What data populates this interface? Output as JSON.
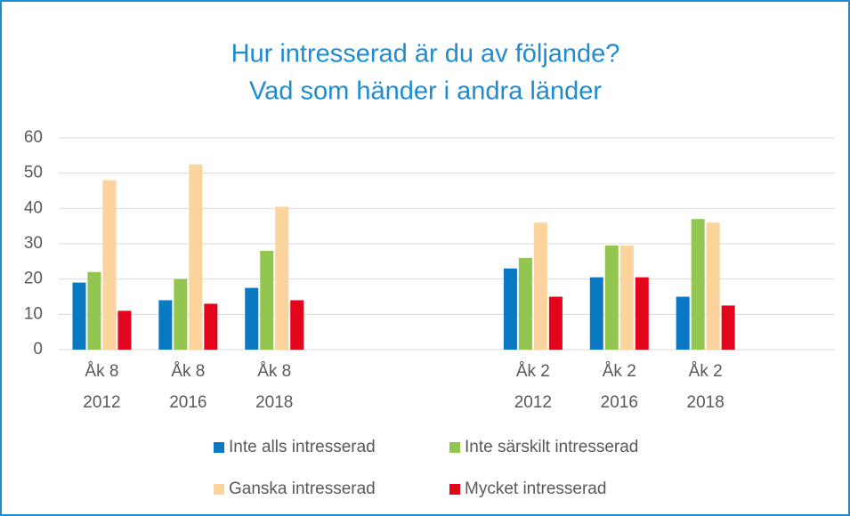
{
  "chart_data": {
    "type": "bar",
    "title": [
      "Hur intresserad är du av följande?",
      "Vad som händer i andra länder"
    ],
    "categories": [
      [
        "Åk 8",
        "2012"
      ],
      [
        "Åk 8",
        "2016"
      ],
      [
        "Åk 8",
        "2018"
      ],
      null,
      null,
      [
        "Åk 2",
        "2012"
      ],
      [
        "Åk 2",
        "2016"
      ],
      [
        "Åk 2",
        "2018"
      ],
      null
    ],
    "series": [
      {
        "name": "Inte alls intresserad",
        "color": "#0b78c3",
        "values": [
          19,
          14,
          17.5,
          null,
          null,
          23,
          20.5,
          15,
          null
        ]
      },
      {
        "name": "Inte särskilt intresserad",
        "color": "#92c650",
        "values": [
          22,
          20,
          28,
          null,
          null,
          26,
          29.5,
          37,
          null
        ]
      },
      {
        "name": "Ganska intresserad",
        "color": "#fbd39d",
        "values": [
          48,
          52.5,
          40.5,
          null,
          null,
          36,
          29.5,
          36,
          null
        ]
      },
      {
        "name": "Mycket intresserad",
        "color": "#e3051c",
        "values": [
          11,
          13,
          14,
          null,
          null,
          15,
          20.5,
          12.5,
          null
        ]
      }
    ],
    "ylim": [
      0,
      60
    ],
    "yticks": [
      0,
      10,
      20,
      30,
      40,
      50,
      60
    ],
    "grid": true
  }
}
